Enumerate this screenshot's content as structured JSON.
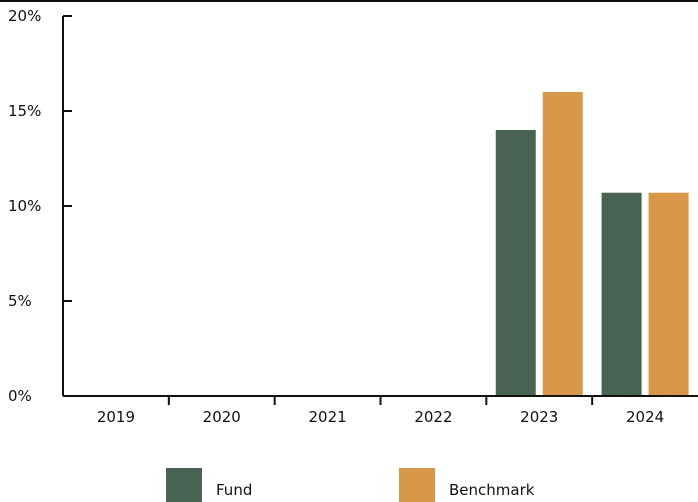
{
  "chart_data": {
    "type": "bar",
    "title": "",
    "xlabel": "",
    "ylabel": "",
    "categories": [
      "2019",
      "2020",
      "2021",
      "2022",
      "2023",
      "2024"
    ],
    "series": [
      {
        "name": "Fund",
        "color": "#486354",
        "values": [
          null,
          null,
          null,
          null,
          14.0,
          10.7
        ]
      },
      {
        "name": "Benchmark",
        "color": "#d9974a",
        "values": [
          null,
          null,
          null,
          null,
          16.0,
          10.7
        ]
      }
    ],
    "ylim": [
      0,
      20
    ],
    "yticks": [
      0,
      5,
      10,
      15,
      20
    ],
    "ytick_labels": [
      "0%",
      "5%",
      "10%",
      "15%",
      "20%"
    ],
    "grid": false,
    "legend_position": "bottom"
  }
}
